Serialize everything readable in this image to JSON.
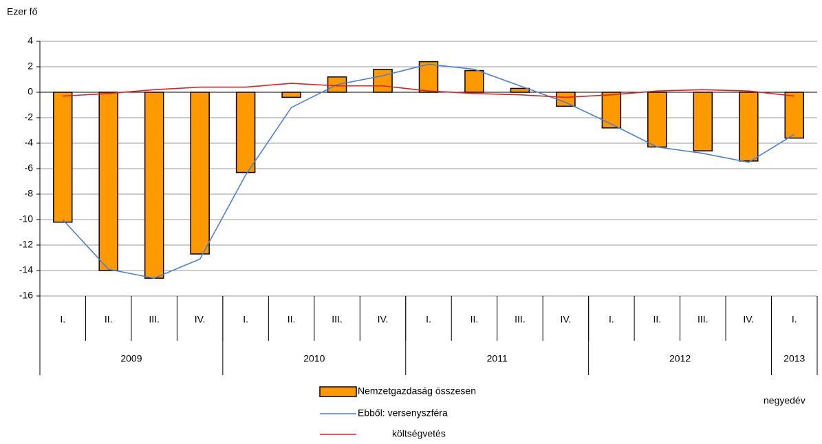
{
  "chart_data": {
    "type": "bar_line",
    "y_axis_label": "Ezer fő",
    "x_axis_label": "negyedév",
    "categories": [
      "I.",
      "II.",
      "III.",
      "IV.",
      "I.",
      "II.",
      "III.",
      "IV.",
      "I.",
      "II.",
      "III.",
      "IV.",
      "I.",
      "II.",
      "III.",
      "IV.",
      "I."
    ],
    "groups": [
      {
        "name": "2009",
        "quarters": 4
      },
      {
        "name": "2010",
        "quarters": 4
      },
      {
        "name": "2011",
        "quarters": 4
      },
      {
        "name": "2012",
        "quarters": 4
      },
      {
        "name": "2013",
        "quarters": 1
      }
    ],
    "series": [
      {
        "name": "Nemzetgazdaság összesen",
        "kind": "bar",
        "color": "#ff9900",
        "values": [
          -10.2,
          -14.0,
          -14.6,
          -12.7,
          -6.3,
          -0.4,
          1.2,
          1.8,
          2.4,
          1.7,
          0.3,
          -1.1,
          -2.8,
          -4.3,
          -4.6,
          -5.4,
          -3.6
        ]
      },
      {
        "name": "Ebből: versenyszféra",
        "kind": "line",
        "color": "#4a7fe0",
        "values": [
          -10.0,
          -13.9,
          -14.6,
          -13.1,
          -6.5,
          -1.2,
          0.6,
          1.3,
          2.2,
          1.8,
          0.5,
          -0.8,
          -2.5,
          -4.3,
          -4.8,
          -5.5,
          -3.3
        ]
      },
      {
        "name": "költségvetés",
        "kind": "line",
        "color": "#e02020",
        "values": [
          -0.3,
          -0.1,
          0.2,
          0.4,
          0.4,
          0.7,
          0.5,
          0.5,
          0.1,
          -0.1,
          -0.2,
          -0.4,
          -0.2,
          0.1,
          0.2,
          0.1,
          -0.3
        ]
      }
    ],
    "ylim": [
      -16,
      4
    ],
    "yticks": [
      -16,
      -14,
      -12,
      -10,
      -8,
      -6,
      -4,
      -2,
      0,
      2,
      4
    ],
    "grid": true
  }
}
